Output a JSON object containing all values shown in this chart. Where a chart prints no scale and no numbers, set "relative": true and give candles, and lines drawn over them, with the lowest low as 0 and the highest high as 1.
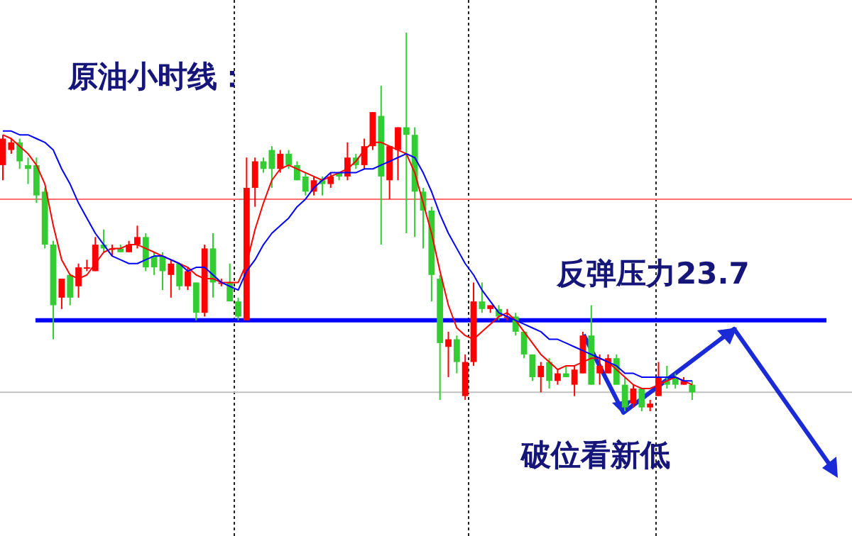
{
  "chart_data": {
    "type": "candlestick",
    "title": "原油小时线：",
    "relative": true,
    "categories": [
      null,
      null,
      null,
      null,
      null,
      null,
      null,
      null,
      null,
      null,
      null,
      null,
      null,
      null,
      null,
      null,
      null,
      null,
      null,
      null,
      null,
      null,
      null,
      null,
      null,
      null,
      null,
      null,
      null,
      null,
      null,
      null,
      null,
      null,
      null,
      null,
      null,
      null,
      null,
      null,
      null,
      null,
      null,
      null,
      null,
      null,
      null,
      null,
      null,
      null,
      null,
      null,
      null,
      null,
      null,
      null,
      null,
      null,
      null,
      null,
      null,
      null,
      null,
      null,
      null,
      null,
      null,
      null,
      null,
      null,
      null,
      null,
      null,
      null,
      null,
      null,
      null,
      null,
      null,
      null,
      null,
      null,
      null
    ],
    "ohlc": [
      [
        0.65,
        0.73,
        0.61,
        0.72
      ],
      [
        0.69,
        0.72,
        0.68,
        0.71
      ],
      [
        0.71,
        0.72,
        0.64,
        0.66
      ],
      [
        0.65,
        0.67,
        0.6,
        0.64
      ],
      [
        0.65,
        0.67,
        0.55,
        0.57
      ],
      [
        0.58,
        0.59,
        0.43,
        0.44
      ],
      [
        0.44,
        0.45,
        0.19,
        0.28
      ],
      [
        0.3,
        0.35,
        0.27,
        0.35
      ],
      [
        0.36,
        0.36,
        0.28,
        0.3
      ],
      [
        0.33,
        0.39,
        0.3,
        0.38
      ],
      [
        0.38,
        0.4,
        0.37,
        0.38
      ],
      [
        0.37,
        0.46,
        0.37,
        0.44
      ],
      [
        0.44,
        0.48,
        0.42,
        0.43
      ],
      [
        0.43,
        0.44,
        0.41,
        0.43
      ],
      [
        0.43,
        0.44,
        0.42,
        0.42
      ],
      [
        0.42,
        0.45,
        0.42,
        0.44
      ],
      [
        0.44,
        0.49,
        0.43,
        0.46
      ],
      [
        0.46,
        0.47,
        0.37,
        0.38
      ],
      [
        0.41,
        0.42,
        0.36,
        0.38
      ],
      [
        0.41,
        0.42,
        0.32,
        0.37
      ],
      [
        0.36,
        0.4,
        0.3,
        0.39
      ],
      [
        0.39,
        0.39,
        0.32,
        0.33
      ],
      [
        0.33,
        0.38,
        0.32,
        0.37
      ],
      [
        0.34,
        0.34,
        0.24,
        0.26
      ],
      [
        0.26,
        0.44,
        0.25,
        0.43
      ],
      [
        0.43,
        0.47,
        0.3,
        0.34
      ],
      [
        0.34,
        0.35,
        0.33,
        0.34
      ],
      [
        0.34,
        0.39,
        0.29,
        0.29
      ],
      [
        0.29,
        0.3,
        0.24,
        0.25
      ],
      [
        0.24,
        0.67,
        0.24,
        0.59
      ],
      [
        0.59,
        0.67,
        0.54,
        0.66
      ],
      [
        0.66,
        0.67,
        0.63,
        0.64
      ],
      [
        0.69,
        0.7,
        0.59,
        0.64
      ],
      [
        0.64,
        0.69,
        0.63,
        0.68
      ],
      [
        0.68,
        0.69,
        0.64,
        0.65
      ],
      [
        0.65,
        0.66,
        0.61,
        0.61
      ],
      [
        0.62,
        0.63,
        0.57,
        0.58
      ],
      [
        0.58,
        0.62,
        0.57,
        0.61
      ],
      [
        0.61,
        0.62,
        0.57,
        0.6
      ],
      [
        0.6,
        0.63,
        0.59,
        0.62
      ],
      [
        0.63,
        0.63,
        0.61,
        0.62
      ],
      [
        0.62,
        0.71,
        0.61,
        0.67
      ],
      [
        0.67,
        0.68,
        0.64,
        0.65
      ],
      [
        0.65,
        0.72,
        0.64,
        0.7
      ],
      [
        0.7,
        0.79,
        0.69,
        0.79
      ],
      [
        0.78,
        0.86,
        0.44,
        0.62
      ],
      [
        0.61,
        0.7,
        0.56,
        0.7
      ],
      [
        0.69,
        0.75,
        0.61,
        0.75
      ],
      [
        0.75,
        1,
        0.47,
        0.73
      ],
      [
        0.73,
        0.75,
        0.46,
        0.58
      ],
      [
        0.58,
        0.59,
        0.43,
        0.53
      ],
      [
        0.53,
        0.54,
        0.29,
        0.36
      ],
      [
        0.35,
        0.36,
        0.03,
        0.18
      ],
      [
        0.17,
        0.21,
        0.09,
        0.19
      ],
      [
        0.19,
        0.2,
        0.1,
        0.13
      ],
      [
        0.04,
        0.15,
        0.03,
        0.13
      ],
      [
        0.13,
        0.34,
        0.12,
        0.29
      ],
      [
        0.29,
        0.34,
        0.26,
        0.27
      ],
      [
        0.27,
        0.28,
        0.26,
        0.28
      ],
      [
        0.27,
        0.28,
        0.24,
        0.25
      ],
      [
        0.25,
        0.27,
        0.24,
        0.25
      ],
      [
        0.25,
        0.26,
        0.2,
        0.21
      ],
      [
        0.21,
        0.21,
        0.14,
        0.15
      ],
      [
        0.15,
        0.15,
        0.08,
        0.09
      ],
      [
        0.09,
        0.13,
        0.05,
        0.12
      ],
      [
        0.13,
        0.14,
        0.06,
        0.08
      ],
      [
        0.08,
        0.11,
        0.07,
        0.1
      ],
      [
        0.1,
        0.12,
        0.09,
        0.09
      ],
      [
        0.07,
        0.12,
        0.04,
        0.11
      ],
      [
        0.1,
        0.21,
        0.1,
        0.2
      ],
      [
        0.2,
        0.28,
        0.07,
        0.07
      ],
      [
        0.1,
        0.15,
        0.07,
        0.12
      ],
      [
        0.1,
        0.15,
        0.1,
        0.14
      ],
      [
        0.14,
        0.15,
        0.07,
        0.07
      ],
      [
        0.07,
        0.09,
        0,
        0.01
      ],
      [
        0.02,
        0.07,
        0.01,
        0.06
      ],
      [
        0.06,
        0.06,
        0,
        0.01
      ],
      [
        0.01,
        0.03,
        0,
        0.02
      ],
      [
        0.04,
        0.13,
        0.04,
        0.09
      ],
      [
        0.08,
        0.12,
        0.06,
        0.07
      ],
      [
        0.09,
        0.1,
        0.06,
        0.07
      ],
      [
        0.07,
        0.09,
        0.07,
        0.08
      ],
      [
        0.07,
        0.08,
        0.03,
        0.05
      ]
    ],
    "series": [
      {
        "type": "line",
        "color": "#ff0000",
        "values": [
          0.73,
          0.72,
          0.7,
          0.68,
          0.65,
          0.6,
          0.49,
          0.4,
          0.36,
          0.35,
          0.36,
          0.39,
          0.42,
          0.43,
          0.43,
          0.44,
          0.44,
          0.43,
          0.42,
          0.41,
          0.4,
          0.39,
          0.38,
          0.36,
          0.35,
          0.35,
          0.34,
          0.34,
          0.34,
          0.39,
          0.48,
          0.55,
          0.61,
          0.64,
          0.65,
          0.64,
          0.63,
          0.62,
          0.61,
          0.62,
          0.63,
          0.64,
          0.66,
          0.69,
          0.71,
          0.71,
          0.7,
          0.69,
          0.68,
          0.63,
          0.55,
          0.47,
          0.37,
          0.28,
          0.22,
          0.2,
          0.19,
          0.21,
          0.23,
          0.25,
          0.26,
          0.24,
          0.21,
          0.18,
          0.15,
          0.13,
          0.11,
          0.12,
          0.12,
          0.13,
          0.14,
          0.14,
          0.13,
          0.11,
          0.09,
          0.07,
          0.06,
          0.06,
          0.07,
          0.08,
          0.09,
          0.08,
          0.07
        ]
      },
      {
        "type": "line",
        "color": "#0000ff",
        "values": [
          0.74,
          0.74,
          0.73,
          0.73,
          0.72,
          0.71,
          0.69,
          0.64,
          0.6,
          0.55,
          0.51,
          0.47,
          0.44,
          0.41,
          0.4,
          0.39,
          0.39,
          0.4,
          0.41,
          0.41,
          0.4,
          0.39,
          0.37,
          0.38,
          0.38,
          0.36,
          0.34,
          0.33,
          0.32,
          0.37,
          0.4,
          0.44,
          0.47,
          0.49,
          0.51,
          0.54,
          0.56,
          0.59,
          0.61,
          0.63,
          0.63,
          0.63,
          0.63,
          0.64,
          0.64,
          0.65,
          0.66,
          0.67,
          0.68,
          0.67,
          0.63,
          0.58,
          0.52,
          0.47,
          0.43,
          0.39,
          0.36,
          0.32,
          0.29,
          0.26,
          0.25,
          0.24,
          0.23,
          0.22,
          0.21,
          0.19,
          0.19,
          0.18,
          0.17,
          0.16,
          0.15,
          0.14,
          0.13,
          0.12,
          0.1,
          0.1,
          0.09,
          0.09,
          0.09,
          0.09,
          0.09,
          0.08,
          0.08
        ]
      }
    ],
    "ref_lines": [
      {
        "axis": "y",
        "value": 0.24,
        "label": "反弹压力23.7",
        "color": "#0000ff"
      },
      {
        "axis": "y",
        "value": 0.56,
        "color": "#ff7070"
      },
      {
        "axis": "y",
        "value": 0.05,
        "color": "#c0c0c0"
      }
    ],
    "annotations": [
      "破位看新低"
    ]
  }
}
